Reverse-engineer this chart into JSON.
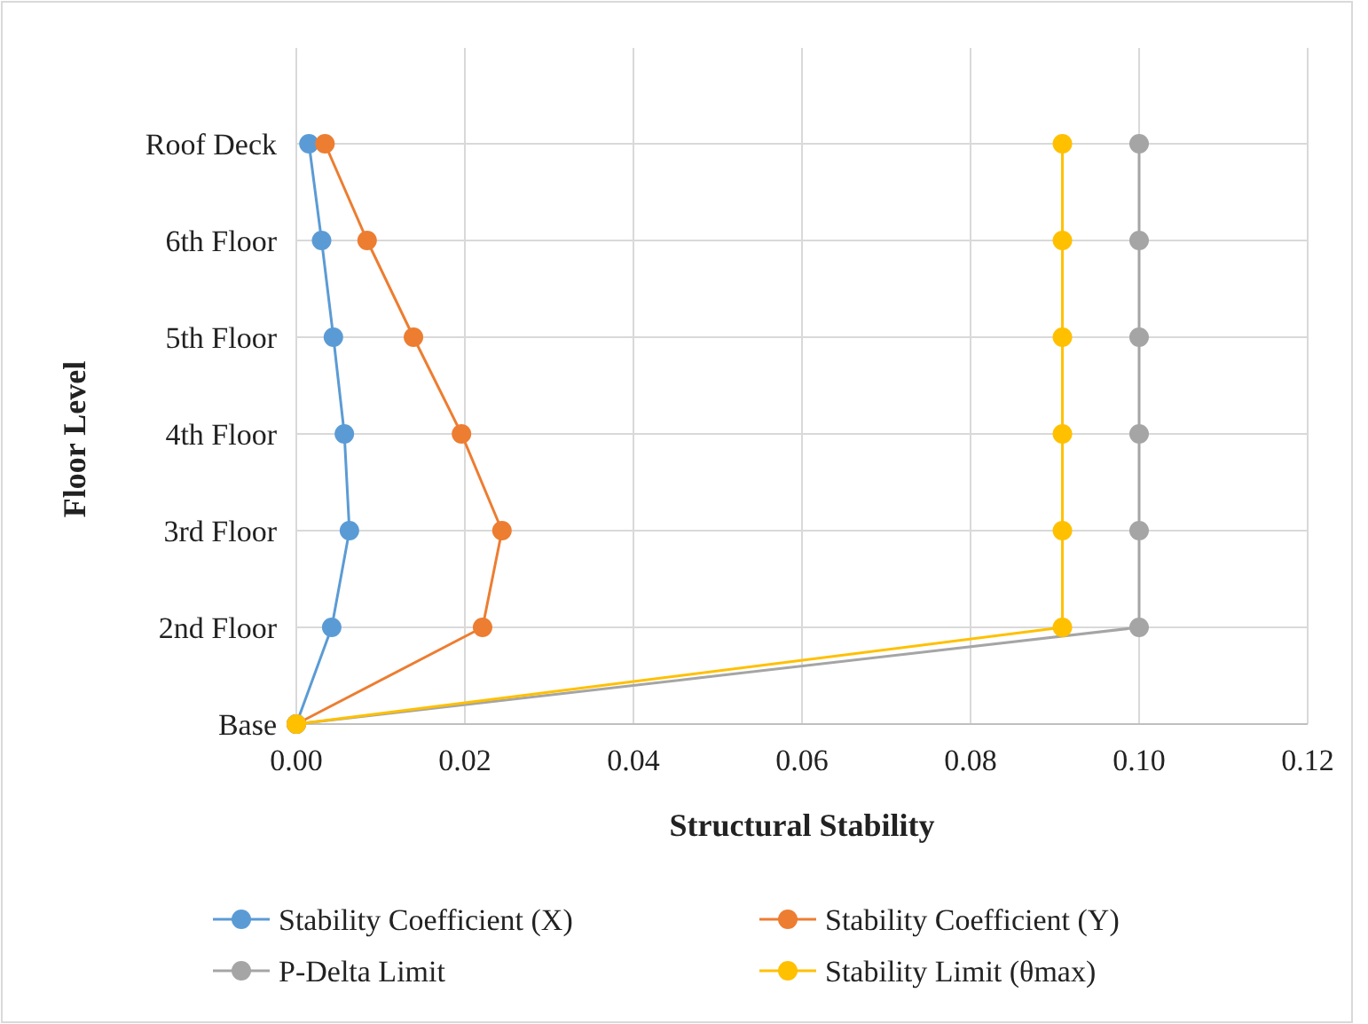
{
  "chart_data": {
    "type": "line",
    "orientation": "horizontal",
    "xlabel": "Structural Stability",
    "ylabel": "Floor Level",
    "categories": [
      "Roof Deck",
      "6th Floor",
      "5th Floor",
      "4th Floor",
      "3rd Floor",
      "2nd Floor",
      "Base"
    ],
    "series": [
      {
        "name": "Stability Coefficient (X)",
        "color": "#5b9bd5",
        "values": [
          0.0015,
          0.003,
          0.0044,
          0.0057,
          0.0063,
          0.0042,
          0
        ]
      },
      {
        "name": "Stability Coefficient (Y)",
        "color": "#ed7d31",
        "values": [
          0.0034,
          0.0084,
          0.0139,
          0.0196,
          0.0244,
          0.0221,
          0
        ]
      },
      {
        "name": "P-Delta Limit",
        "color": "#a5a5a5",
        "values": [
          0.1,
          0.1,
          0.1,
          0.1,
          0.1,
          0.1,
          0
        ]
      },
      {
        "name": "Stability Limit (θmax)",
        "color": "#ffc000",
        "values": [
          0.0909,
          0.0909,
          0.0909,
          0.0909,
          0.0909,
          0.0909,
          0
        ]
      }
    ],
    "xlim": [
      0,
      0.12
    ],
    "xticks": [
      {
        "value": 0,
        "label": "0.00"
      },
      {
        "value": 0.02,
        "label": "0.02"
      },
      {
        "value": 0.04,
        "label": "0.04"
      },
      {
        "value": 0.06,
        "label": "0.06"
      },
      {
        "value": 0.08,
        "label": "0.08"
      },
      {
        "value": 0.1,
        "label": "0.10"
      },
      {
        "value": 0.12,
        "label": "0.12"
      }
    ],
    "grid": true,
    "legend": "bottom",
    "marker": "circle",
    "line_style": "solid"
  }
}
